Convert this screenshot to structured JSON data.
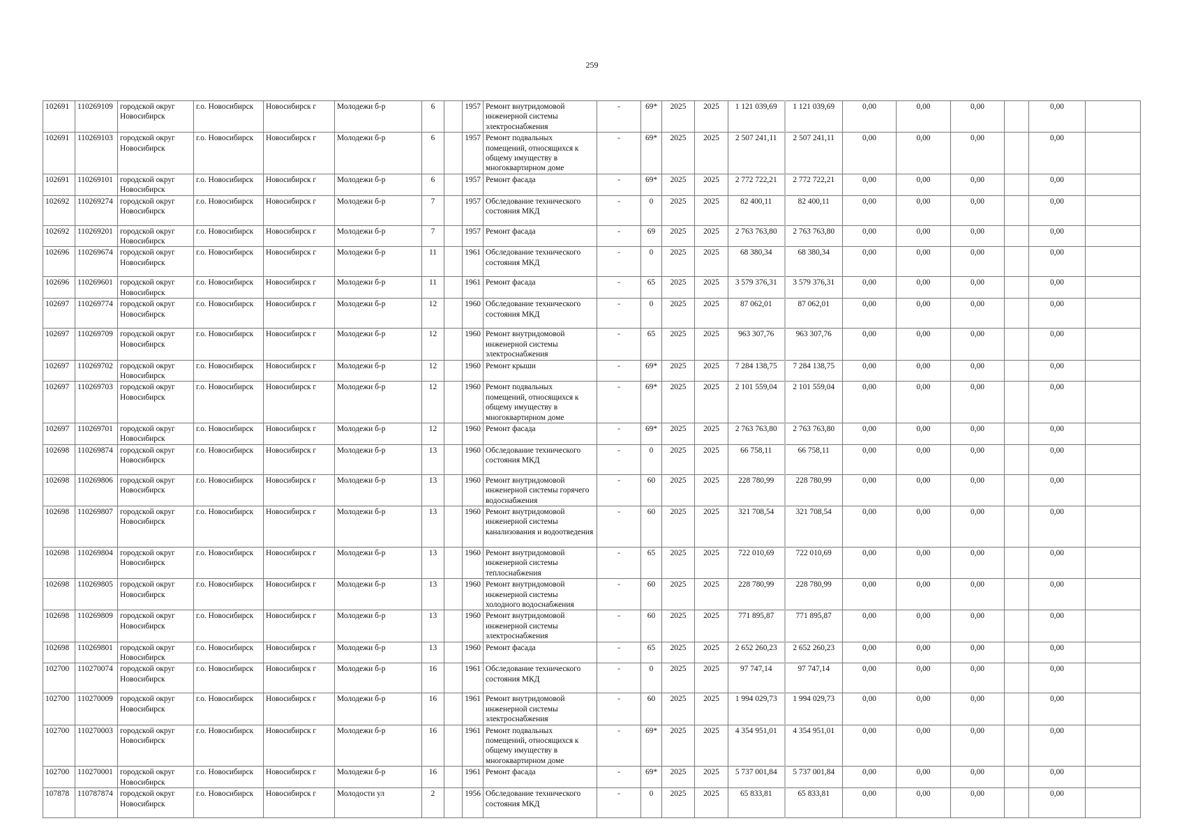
{
  "page_number": "259",
  "rows": [
    [
      "102691",
      "110269109",
      "городской округ Новосибирск",
      "г.о. Новосибирск",
      "Новосибирск г",
      "Молодежи б-р",
      "6",
      "",
      "1957",
      "Ремонт внутридомовой инженерной системы электроснабжения",
      "-",
      "69*",
      "2025",
      "2025",
      "1 121 039,69",
      "1 121 039,69",
      "0,00",
      "0,00",
      "0,00",
      "",
      "0,00",
      ""
    ],
    [
      "102691",
      "110269103",
      "городской округ Новосибирск",
      "г.о. Новосибирск",
      "Новосибирск г",
      "Молодежи б-р",
      "6",
      "",
      "1957",
      "Ремонт подвальных помещений, относящихся к общему имуществу в многоквартирном доме",
      "-",
      "69*",
      "2025",
      "2025",
      "2 507 241,11",
      "2 507 241,11",
      "0,00",
      "0,00",
      "0,00",
      "",
      "0,00",
      ""
    ],
    [
      "102691",
      "110269101",
      "городской округ Новосибирск",
      "г.о. Новосибирск",
      "Новосибирск г",
      "Молодежи б-р",
      "6",
      "",
      "1957",
      "Ремонт фасада",
      "-",
      "69*",
      "2025",
      "2025",
      "2 772 722,21",
      "2 772 722,21",
      "0,00",
      "0,00",
      "0,00",
      "",
      "0,00",
      ""
    ],
    [
      "102692",
      "110269274",
      "городской округ Новосибирск",
      "г.о. Новосибирск",
      "Новосибирск г",
      "Молодежи б-р",
      "7",
      "",
      "1957",
      "Обследование технического состояния МКД",
      "-",
      "0",
      "2025",
      "2025",
      "82 400,11",
      "82 400,11",
      "0,00",
      "0,00",
      "0,00",
      "",
      "0,00",
      ""
    ],
    [
      "102692",
      "110269201",
      "городской округ Новосибирск",
      "г.о. Новосибирск",
      "Новосибирск г",
      "Молодежи б-р",
      "7",
      "",
      "1957",
      "Ремонт фасада",
      "-",
      "69",
      "2025",
      "2025",
      "2 763 763,80",
      "2 763 763,80",
      "0,00",
      "0,00",
      "0,00",
      "",
      "0,00",
      ""
    ],
    [
      "102696",
      "110269674",
      "городской округ Новосибирск",
      "г.о. Новосибирск",
      "Новосибирск г",
      "Молодежи б-р",
      "11",
      "",
      "1961",
      "Обследование технического состояния МКД",
      "-",
      "0",
      "2025",
      "2025",
      "68 380,34",
      "68 380,34",
      "0,00",
      "0,00",
      "0,00",
      "",
      "0,00",
      ""
    ],
    [
      "102696",
      "110269601",
      "городской округ Новосибирск",
      "г.о. Новосибирск",
      "Новосибирск г",
      "Молодежи б-р",
      "11",
      "",
      "1961",
      "Ремонт фасада",
      "-",
      "65",
      "2025",
      "2025",
      "3 579 376,31",
      "3 579 376,31",
      "0,00",
      "0,00",
      "0,00",
      "",
      "0,00",
      ""
    ],
    [
      "102697",
      "110269774",
      "городской округ Новосибирск",
      "г.о. Новосибирск",
      "Новосибирск г",
      "Молодежи б-р",
      "12",
      "",
      "1960",
      "Обследование технического состояния МКД",
      "-",
      "0",
      "2025",
      "2025",
      "87 062,01",
      "87 062,01",
      "0,00",
      "0,00",
      "0,00",
      "",
      "0,00",
      ""
    ],
    [
      "102697",
      "110269709",
      "городской округ Новосибирск",
      "г.о. Новосибирск",
      "Новосибирск г",
      "Молодежи б-р",
      "12",
      "",
      "1960",
      "Ремонт внутридомовой инженерной системы электроснабжения",
      "-",
      "65",
      "2025",
      "2025",
      "963 307,76",
      "963 307,76",
      "0,00",
      "0,00",
      "0,00",
      "",
      "0,00",
      ""
    ],
    [
      "102697",
      "110269702",
      "городской округ Новосибирск",
      "г.о. Новосибирск",
      "Новосибирск г",
      "Молодежи б-р",
      "12",
      "",
      "1960",
      "Ремонт крыши",
      "-",
      "69*",
      "2025",
      "2025",
      "7 284 138,75",
      "7 284 138,75",
      "0,00",
      "0,00",
      "0,00",
      "",
      "0,00",
      ""
    ],
    [
      "102697",
      "110269703",
      "городской округ Новосибирск",
      "г.о. Новосибирск",
      "Новосибирск г",
      "Молодежи б-р",
      "12",
      "",
      "1960",
      "Ремонт подвальных помещений, относящихся к общему имуществу в многоквартирном доме",
      "-",
      "69*",
      "2025",
      "2025",
      "2 101 559,04",
      "2 101 559,04",
      "0,00",
      "0,00",
      "0,00",
      "",
      "0,00",
      ""
    ],
    [
      "102697",
      "110269701",
      "городской округ Новосибирск",
      "г.о. Новосибирск",
      "Новосибирск г",
      "Молодежи б-р",
      "12",
      "",
      "1960",
      "Ремонт фасада",
      "-",
      "69*",
      "2025",
      "2025",
      "2 763 763,80",
      "2 763 763,80",
      "0,00",
      "0,00",
      "0,00",
      "",
      "0,00",
      ""
    ],
    [
      "102698",
      "110269874",
      "городской округ Новосибирск",
      "г.о. Новосибирск",
      "Новосибирск г",
      "Молодежи б-р",
      "13",
      "",
      "1960",
      "Обследование технического состояния МКД",
      "-",
      "0",
      "2025",
      "2025",
      "66 758,11",
      "66 758,11",
      "0,00",
      "0,00",
      "0,00",
      "",
      "0,00",
      ""
    ],
    [
      "102698",
      "110269806",
      "городской округ Новосибирск",
      "г.о. Новосибирск",
      "Новосибирск г",
      "Молодежи б-р",
      "13",
      "",
      "1960",
      "Ремонт внутридомовой инженерной системы горячего водоснабжения",
      "-",
      "60",
      "2025",
      "2025",
      "228 780,99",
      "228 780,99",
      "0,00",
      "0,00",
      "0,00",
      "",
      "0,00",
      ""
    ],
    [
      "102698",
      "110269807",
      "городской округ Новосибирск",
      "г.о. Новосибирск",
      "Новосибирск г",
      "Молодежи б-р",
      "13",
      "",
      "1960",
      "Ремонт внутридомовой инженерной системы канализования и водоотведения",
      "-",
      "60",
      "2025",
      "2025",
      "321 708,54",
      "321 708,54",
      "0,00",
      "0,00",
      "0,00",
      "",
      "0,00",
      ""
    ],
    [
      "102698",
      "110269804",
      "городской округ Новосибирск",
      "г.о. Новосибирск",
      "Новосибирск г",
      "Молодежи б-р",
      "13",
      "",
      "1960",
      "Ремонт внутридомовой инженерной системы теплоснабжения",
      "-",
      "65",
      "2025",
      "2025",
      "722 010,69",
      "722 010,69",
      "0,00",
      "0,00",
      "0,00",
      "",
      "0,00",
      ""
    ],
    [
      "102698",
      "110269805",
      "городской округ Новосибирск",
      "г.о. Новосибирск",
      "Новосибирск г",
      "Молодежи б-р",
      "13",
      "",
      "1960",
      "Ремонт внутридомовой инженерной системы холодного водоснабжения",
      "-",
      "60",
      "2025",
      "2025",
      "228 780,99",
      "228 780,99",
      "0,00",
      "0,00",
      "0,00",
      "",
      "0,00",
      ""
    ],
    [
      "102698",
      "110269809",
      "городской округ Новосибирск",
      "г.о. Новосибирск",
      "Новосибирск г",
      "Молодежи б-р",
      "13",
      "",
      "1960",
      "Ремонт внутридомовой инженерной системы электроснабжения",
      "-",
      "60",
      "2025",
      "2025",
      "771 895,87",
      "771 895,87",
      "0,00",
      "0,00",
      "0,00",
      "",
      "0,00",
      ""
    ],
    [
      "102698",
      "110269801",
      "городской округ Новосибирск",
      "г.о. Новосибирск",
      "Новосибирск г",
      "Молодежи б-р",
      "13",
      "",
      "1960",
      "Ремонт фасада",
      "-",
      "65",
      "2025",
      "2025",
      "2 652 260,23",
      "2 652 260,23",
      "0,00",
      "0,00",
      "0,00",
      "",
      "0,00",
      ""
    ],
    [
      "102700",
      "110270074",
      "городской округ Новосибирск",
      "г.о. Новосибирск",
      "Новосибирск г",
      "Молодежи б-р",
      "16",
      "",
      "1961",
      "Обследование технического состояния МКД",
      "-",
      "0",
      "2025",
      "2025",
      "97 747,14",
      "97 747,14",
      "0,00",
      "0,00",
      "0,00",
      "",
      "0,00",
      ""
    ],
    [
      "102700",
      "110270009",
      "городской округ Новосибирск",
      "г.о. Новосибирск",
      "Новосибирск г",
      "Молодежи б-р",
      "16",
      "",
      "1961",
      "Ремонт внутридомовой инженерной системы электроснабжения",
      "-",
      "60",
      "2025",
      "2025",
      "1 994 029,73",
      "1 994 029,73",
      "0,00",
      "0,00",
      "0,00",
      "",
      "0,00",
      ""
    ],
    [
      "102700",
      "110270003",
      "городской округ Новосибирск",
      "г.о. Новосибирск",
      "Новосибирск г",
      "Молодежи б-р",
      "16",
      "",
      "1961",
      "Ремонт подвальных помещений, относящихся к общему имуществу в многоквартирном доме",
      "-",
      "69*",
      "2025",
      "2025",
      "4 354 951,01",
      "4 354 951,01",
      "0,00",
      "0,00",
      "0,00",
      "",
      "0,00",
      ""
    ],
    [
      "102700",
      "110270001",
      "городской округ Новосибирск",
      "г.о. Новосибирск",
      "Новосибирск г",
      "Молодежи б-р",
      "16",
      "",
      "1961",
      "Ремонт фасада",
      "-",
      "69*",
      "2025",
      "2025",
      "5 737 001,84",
      "5 737 001,84",
      "0,00",
      "0,00",
      "0,00",
      "",
      "0,00",
      ""
    ],
    [
      "107878",
      "110787874",
      "городской округ Новосибирск",
      "г.о. Новосибирск",
      "Новосибирск г",
      "Молодости ул",
      "2",
      "",
      "1956",
      "Обследование технического состояния МКД",
      "-",
      "0",
      "2025",
      "2025",
      "65 833,81",
      "65 833,81",
      "0,00",
      "0,00",
      "0,00",
      "",
      "0,00",
      ""
    ]
  ]
}
